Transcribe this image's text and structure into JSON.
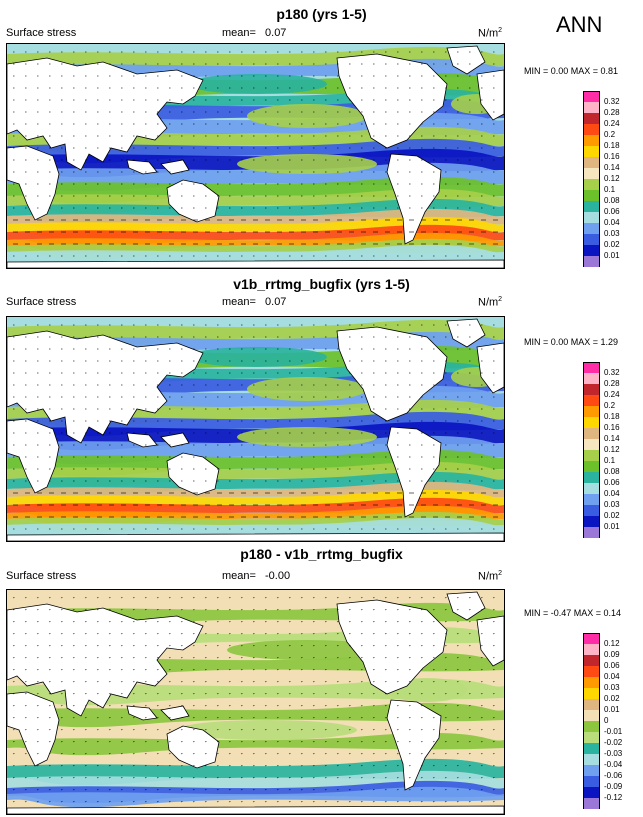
{
  "corner_label": "ANN",
  "panels": [
    {
      "title": "p180 (yrs 1-5)",
      "field": "Surface stress",
      "mean_label": "mean=",
      "mean": "0.07",
      "units": "N/m",
      "units_exp": "2",
      "minmax": "MIN =  0.00 MAX =  0.81",
      "levels": [
        "0.32",
        "0.28",
        "0.24",
        "0.2",
        "0.18",
        "0.16",
        "0.14",
        "0.12",
        "0.1",
        "0.08",
        "0.06",
        "0.04",
        "0.03",
        "0.02",
        "0.01"
      ],
      "colors": [
        "#ff2ea6",
        "#ffb3c6",
        "#c0262b",
        "#ff4a14",
        "#ff9a00",
        "#ffd700",
        "#e0b680",
        "#f5e6c0",
        "#a6cf4a",
        "#6cc02a",
        "#2ab39e",
        "#a6dde0",
        "#6fa0f0",
        "#3a5ce0",
        "#0a14c0",
        "#9b78d8"
      ]
    },
    {
      "title": "v1b_rrtmg_bugfix (yrs 1-5)",
      "field": "Surface stress",
      "mean_label": "mean=",
      "mean": "0.07",
      "units": "N/m",
      "units_exp": "2",
      "minmax": "MIN =  0.00 MAX =  1.29",
      "levels": [
        "0.32",
        "0.28",
        "0.24",
        "0.2",
        "0.18",
        "0.16",
        "0.14",
        "0.12",
        "0.1",
        "0.08",
        "0.06",
        "0.04",
        "0.03",
        "0.02",
        "0.01"
      ],
      "colors": [
        "#ff2ea6",
        "#ffb3c6",
        "#c0262b",
        "#ff4a14",
        "#ff9a00",
        "#ffd700",
        "#e0b680",
        "#f5e6c0",
        "#a6cf4a",
        "#6cc02a",
        "#2ab39e",
        "#a6dde0",
        "#6fa0f0",
        "#3a5ce0",
        "#0a14c0",
        "#9b78d8"
      ]
    },
    {
      "title": "p180 - v1b_rrtmg_bugfix",
      "field": "Surface stress",
      "mean_label": "mean=",
      "mean": "-0.00",
      "units": "N/m",
      "units_exp": "2",
      "minmax": "MIN = -0.47 MAX =  0.14",
      "levels": [
        "0.12",
        "0.09",
        "0.06",
        "0.04",
        "0.03",
        "0.02",
        "0.01",
        "0",
        "-0.01",
        "-0.02",
        "-0.03",
        "-0.04",
        "-0.06",
        "-0.09",
        "-0.12"
      ],
      "colors": [
        "#ff2ea6",
        "#ffb3c6",
        "#c0262b",
        "#ff4a14",
        "#ff9a00",
        "#ffd700",
        "#e0b680",
        "#f2dfb6",
        "#8cc63f",
        "#b8dd7a",
        "#2ab39e",
        "#a6dde0",
        "#6fa0f0",
        "#3a5ce0",
        "#0a14c0",
        "#9b78d8"
      ]
    }
  ]
}
